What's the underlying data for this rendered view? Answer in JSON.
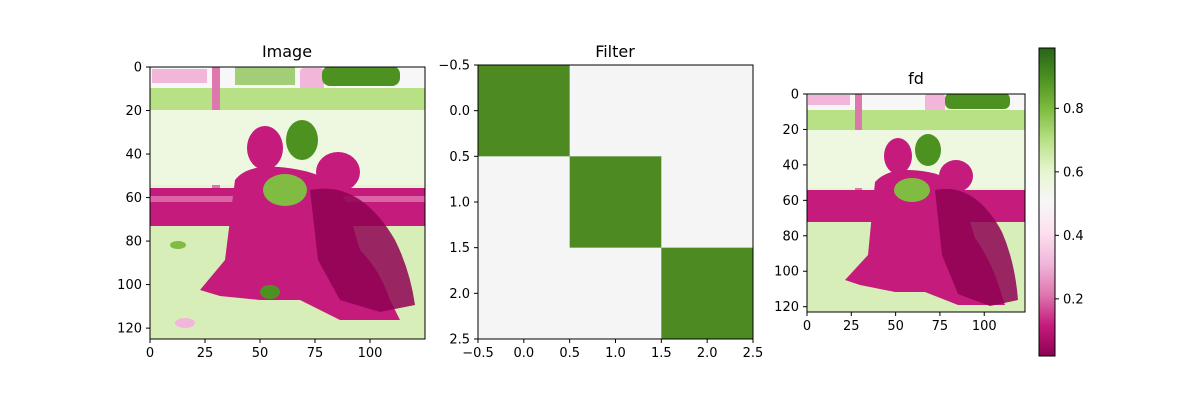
{
  "figure": {
    "colormap": "PiYG",
    "colormap_stops": [
      "#8e0152",
      "#c51b7d",
      "#de77ae",
      "#f1b6da",
      "#fde0ef",
      "#f7f7f7",
      "#e6f5d0",
      "#b8e186",
      "#7fbc41",
      "#4d9221",
      "#276419"
    ]
  },
  "chart_data": [
    {
      "type": "heatmap",
      "title": "Image",
      "xlim": [
        0,
        125
      ],
      "ylim": [
        125,
        0
      ],
      "xticks": [
        0,
        25,
        50,
        75,
        100
      ],
      "yticks": [
        0,
        20,
        40,
        60,
        80,
        100,
        120
      ],
      "xtick_labels": [
        "0",
        "25",
        "50",
        "75",
        "100"
      ],
      "ytick_labels": [
        "0",
        "20",
        "40",
        "60",
        "80",
        "100",
        "120"
      ],
      "content": "photograph of two children and a dog sitting on grass, rendered with PiYG colormap"
    },
    {
      "type": "heatmap",
      "title": "Filter",
      "xlim": [
        -0.5,
        2.5
      ],
      "ylim": [
        2.5,
        -0.5
      ],
      "xticks": [
        -0.5,
        0.0,
        0.5,
        1.0,
        1.5,
        2.0,
        2.5
      ],
      "yticks": [
        -0.5,
        0.0,
        0.5,
        1.0,
        1.5,
        2.0,
        2.5
      ],
      "xtick_labels": [
        "−0.5",
        "0.0",
        "0.5",
        "1.0",
        "1.5",
        "2.0",
        "2.5"
      ],
      "ytick_labels": [
        "−0.5",
        "0.0",
        "0.5",
        "1.0",
        "1.5",
        "2.0",
        "2.5"
      ],
      "matrix": [
        [
          1,
          0,
          0
        ],
        [
          0,
          1,
          0
        ],
        [
          0,
          0,
          1
        ]
      ],
      "colors": {
        "high": "#4d8a21",
        "low": "#f5f5f5"
      }
    },
    {
      "type": "heatmap",
      "title": "fd",
      "xlim": [
        0,
        123
      ],
      "ylim": [
        123,
        0
      ],
      "xticks": [
        0,
        25,
        50,
        75,
        100
      ],
      "yticks": [
        0,
        20,
        40,
        60,
        80,
        100,
        120
      ],
      "xtick_labels": [
        "0",
        "25",
        "50",
        "75",
        "100"
      ],
      "ytick_labels": [
        "0",
        "20",
        "40",
        "60",
        "80",
        "100",
        "120"
      ],
      "content": "filtered (diagonal convolution) version of the image, rendered with PiYG colormap",
      "colorbar": {
        "min": 0.02,
        "max": 0.99,
        "ticks": [
          0.2,
          0.4,
          0.6,
          0.8
        ],
        "tick_labels": [
          "0.2",
          "0.4",
          "0.6",
          "0.8"
        ]
      }
    }
  ]
}
